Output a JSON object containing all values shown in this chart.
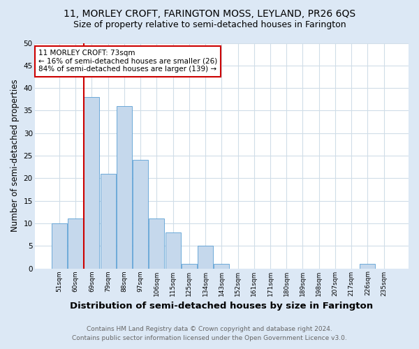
{
  "title": "11, MORLEY CROFT, FARINGTON MOSS, LEYLAND, PR26 6QS",
  "subtitle": "Size of property relative to semi-detached houses in Farington",
  "xlabel": "Distribution of semi-detached houses by size in Farington",
  "ylabel": "Number of semi-detached properties",
  "footnote1": "Contains HM Land Registry data © Crown copyright and database right 2024.",
  "footnote2": "Contains public sector information licensed under the Open Government Licence v3.0.",
  "annotation_title": "11 MORLEY CROFT: 73sqm",
  "annotation_line2": "← 16% of semi-detached houses are smaller (26)",
  "annotation_line3": "84% of semi-detached houses are larger (139) →",
  "bar_categories": [
    "51sqm",
    "60sqm",
    "69sqm",
    "79sqm",
    "88sqm",
    "97sqm",
    "106sqm",
    "115sqm",
    "125sqm",
    "134sqm",
    "143sqm",
    "152sqm",
    "161sqm",
    "171sqm",
    "180sqm",
    "189sqm",
    "198sqm",
    "207sqm",
    "217sqm",
    "226sqm",
    "235sqm"
  ],
  "bar_values": [
    10,
    11,
    38,
    21,
    36,
    24,
    11,
    8,
    1,
    5,
    1,
    0,
    0,
    0,
    0,
    0,
    0,
    0,
    0,
    1,
    0
  ],
  "bar_color": "#c5d8ec",
  "bar_edge_color": "#5a9fd4",
  "vline_color": "#cc0000",
  "background_color": "#dce8f5",
  "plot_bg_color": "#ffffff",
  "ylim": [
    0,
    50
  ],
  "yticks": [
    0,
    5,
    10,
    15,
    20,
    25,
    30,
    35,
    40,
    45,
    50
  ],
  "grid_color": "#d0dde8",
  "title_fontsize": 10,
  "subtitle_fontsize": 9,
  "xlabel_fontsize": 9.5,
  "ylabel_fontsize": 8.5,
  "annotation_box_color": "#ffffff",
  "annotation_box_edge": "#cc0000",
  "footnote_color": "#666666",
  "footnote_fontsize": 6.5
}
